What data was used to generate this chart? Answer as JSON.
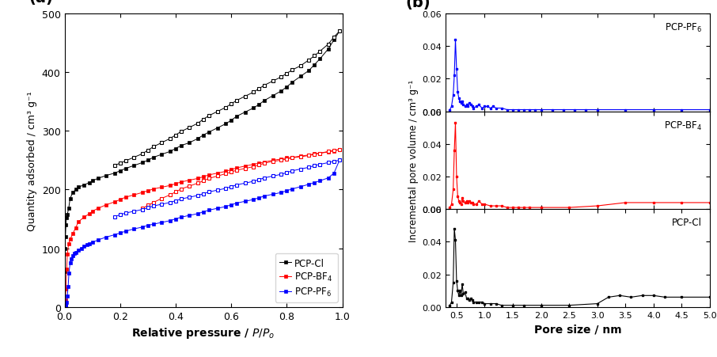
{
  "panel_a": {
    "xlabel": "Relative pressure / $P/P_o$",
    "ylabel": "Quantity adsorbed / cm³ g⁻¹",
    "xlim": [
      0,
      1.0
    ],
    "ylim": [
      0,
      500
    ],
    "yticks": [
      0,
      100,
      200,
      300,
      400,
      500
    ],
    "xticks": [
      0.0,
      0.2,
      0.4,
      0.6,
      0.8,
      1.0
    ],
    "series": {
      "PCP-Cl": {
        "color": "black",
        "adsorption_x": [
          0.001,
          0.002,
          0.003,
          0.005,
          0.007,
          0.01,
          0.015,
          0.02,
          0.03,
          0.04,
          0.05,
          0.07,
          0.09,
          0.1,
          0.12,
          0.15,
          0.18,
          0.2,
          0.22,
          0.25,
          0.28,
          0.3,
          0.32,
          0.35,
          0.38,
          0.4,
          0.42,
          0.45,
          0.48,
          0.5,
          0.52,
          0.55,
          0.58,
          0.6,
          0.62,
          0.65,
          0.68,
          0.7,
          0.72,
          0.75,
          0.78,
          0.8,
          0.82,
          0.85,
          0.88,
          0.9,
          0.92,
          0.95,
          0.97,
          0.99
        ],
        "adsorption_y": [
          60,
          100,
          120,
          140,
          152,
          158,
          168,
          185,
          195,
          200,
          204,
          208,
          212,
          215,
          219,
          224,
          228,
          232,
          236,
          241,
          246,
          250,
          255,
          260,
          265,
          270,
          275,
          280,
          287,
          293,
          298,
          305,
          312,
          318,
          325,
          332,
          339,
          345,
          352,
          360,
          368,
          375,
          383,
          393,
          403,
          413,
          423,
          440,
          455,
          470
        ],
        "desorption_x": [
          0.99,
          0.97,
          0.95,
          0.92,
          0.9,
          0.88,
          0.85,
          0.82,
          0.8,
          0.78,
          0.75,
          0.72,
          0.7,
          0.68,
          0.65,
          0.62,
          0.6,
          0.58,
          0.55,
          0.52,
          0.5,
          0.48,
          0.45,
          0.42,
          0.4,
          0.38,
          0.35,
          0.32,
          0.3,
          0.28,
          0.25,
          0.22,
          0.2,
          0.18
        ],
        "desorption_y": [
          470,
          460,
          448,
          436,
          428,
          421,
          411,
          404,
          398,
          392,
          385,
          378,
          372,
          366,
          359,
          352,
          346,
          340,
          333,
          326,
          320,
          313,
          306,
          299,
          293,
          287,
          280,
          273,
          267,
          261,
          255,
          249,
          245,
          241
        ]
      },
      "PCP-BF4": {
        "color": "red",
        "adsorption_x": [
          0.001,
          0.003,
          0.005,
          0.008,
          0.01,
          0.015,
          0.02,
          0.03,
          0.04,
          0.05,
          0.07,
          0.09,
          0.1,
          0.12,
          0.15,
          0.18,
          0.2,
          0.22,
          0.25,
          0.28,
          0.3,
          0.32,
          0.35,
          0.38,
          0.4,
          0.42,
          0.45,
          0.48,
          0.5,
          0.52,
          0.55,
          0.58,
          0.6,
          0.62,
          0.65,
          0.68,
          0.7,
          0.72,
          0.75,
          0.78,
          0.8,
          0.82,
          0.85,
          0.88,
          0.9,
          0.92,
          0.95,
          0.97,
          0.99
        ],
        "adsorption_y": [
          5,
          12,
          30,
          65,
          90,
          108,
          115,
          125,
          135,
          145,
          153,
          159,
          163,
          168,
          174,
          179,
          183,
          187,
          191,
          195,
          198,
          201,
          204,
          207,
          210,
          213,
          216,
          219,
          222,
          225,
          228,
          231,
          234,
          237,
          240,
          243,
          245,
          247,
          250,
          252,
          254,
          255,
          257,
          259,
          261,
          262,
          264,
          266,
          268
        ],
        "desorption_x": [
          0.99,
          0.97,
          0.95,
          0.92,
          0.9,
          0.88,
          0.85,
          0.82,
          0.8,
          0.78,
          0.75,
          0.72,
          0.7,
          0.68,
          0.65,
          0.62,
          0.6,
          0.58,
          0.55,
          0.52,
          0.5,
          0.48,
          0.45,
          0.42,
          0.4,
          0.38,
          0.35,
          0.32,
          0.3,
          0.28
        ],
        "desorption_y": [
          268,
          267,
          265,
          262,
          260,
          258,
          256,
          254,
          252,
          250,
          248,
          245,
          242,
          239,
          236,
          233,
          230,
          227,
          223,
          219,
          215,
          211,
          206,
          201,
          196,
          191,
          185,
          178,
          173,
          168
        ]
      },
      "PCP-PF6": {
        "color": "blue",
        "adsorption_x": [
          0.001,
          0.002,
          0.003,
          0.005,
          0.007,
          0.01,
          0.013,
          0.016,
          0.02,
          0.025,
          0.03,
          0.035,
          0.04,
          0.05,
          0.06,
          0.07,
          0.08,
          0.09,
          0.1,
          0.12,
          0.15,
          0.18,
          0.2,
          0.22,
          0.25,
          0.28,
          0.3,
          0.32,
          0.35,
          0.38,
          0.4,
          0.42,
          0.45,
          0.48,
          0.5,
          0.52,
          0.55,
          0.58,
          0.6,
          0.62,
          0.65,
          0.68,
          0.7,
          0.72,
          0.75,
          0.78,
          0.8,
          0.82,
          0.85,
          0.88,
          0.9,
          0.92,
          0.95,
          0.97,
          0.99
        ],
        "adsorption_y": [
          0,
          0,
          1,
          3,
          8,
          18,
          35,
          58,
          75,
          82,
          87,
          91,
          93,
          97,
          100,
          103,
          106,
          108,
          110,
          114,
          119,
          123,
          126,
          129,
          133,
          136,
          139,
          141,
          144,
          147,
          150,
          153,
          156,
          159,
          162,
          165,
          168,
          171,
          174,
          177,
          180,
          183,
          186,
          189,
          192,
          195,
          198,
          201,
          205,
          209,
          212,
          215,
          220,
          228,
          250
        ],
        "desorption_x": [
          0.99,
          0.97,
          0.95,
          0.92,
          0.9,
          0.88,
          0.85,
          0.82,
          0.8,
          0.78,
          0.75,
          0.72,
          0.7,
          0.68,
          0.65,
          0.62,
          0.6,
          0.58,
          0.55,
          0.52,
          0.5,
          0.48,
          0.45,
          0.42,
          0.4,
          0.38,
          0.35,
          0.32,
          0.3,
          0.28,
          0.25,
          0.22,
          0.2,
          0.18
        ],
        "desorption_y": [
          250,
          248,
          246,
          243,
          241,
          238,
          235,
          232,
          229,
          226,
          223,
          220,
          217,
          214,
          211,
          208,
          205,
          202,
          199,
          196,
          193,
          190,
          187,
          184,
          181,
          178,
          175,
          172,
          169,
          166,
          163,
          160,
          157,
          154
        ]
      }
    },
    "legend_order": [
      "PCP-Cl",
      "PCP-BF4",
      "PCP-PF6"
    ],
    "legend_labels": [
      "PCP-Cl",
      "PCP-BF$_4$",
      "PCP-PF$_6$"
    ]
  },
  "panel_b": {
    "xlabel": "Pore size / nm",
    "ylabel": "Incremental pore volume / cm³ g⁻¹",
    "xlim": [
      0.3,
      5.0
    ],
    "ylim": [
      0.0,
      0.06
    ],
    "yticks": [
      0.0,
      0.02,
      0.04,
      0.06
    ],
    "xticks": [
      0.5,
      1.0,
      1.5,
      2.0,
      2.5,
      3.0,
      3.5,
      4.0,
      4.5,
      5.0
    ],
    "subplot_order": [
      "PCP-PF6",
      "PCP-BF4",
      "PCP-Cl"
    ],
    "subplots": {
      "PCP-PF6": {
        "color": "blue",
        "label": "PCP-PF$_6$",
        "x": [
          0.38,
          0.41,
          0.44,
          0.46,
          0.48,
          0.5,
          0.52,
          0.54,
          0.56,
          0.58,
          0.6,
          0.62,
          0.65,
          0.68,
          0.7,
          0.72,
          0.75,
          0.78,
          0.8,
          0.85,
          0.9,
          0.95,
          1.0,
          1.05,
          1.1,
          1.15,
          1.2,
          1.3,
          1.4,
          1.5,
          1.6,
          1.7,
          1.8,
          1.9,
          2.0,
          2.2,
          2.4,
          2.6,
          2.8,
          3.0,
          3.5,
          4.0,
          4.5,
          5.0
        ],
        "y": [
          0.001,
          0.003,
          0.01,
          0.022,
          0.044,
          0.026,
          0.012,
          0.008,
          0.006,
          0.005,
          0.006,
          0.004,
          0.003,
          0.004,
          0.003,
          0.005,
          0.004,
          0.003,
          0.002,
          0.003,
          0.004,
          0.002,
          0.003,
          0.003,
          0.002,
          0.003,
          0.002,
          0.002,
          0.001,
          0.001,
          0.001,
          0.001,
          0.001,
          0.001,
          0.001,
          0.001,
          0.001,
          0.001,
          0.001,
          0.001,
          0.001,
          0.001,
          0.001,
          0.001
        ]
      },
      "PCP-BF4": {
        "color": "red",
        "label": "PCP-BF$_4$",
        "x": [
          0.38,
          0.41,
          0.44,
          0.46,
          0.48,
          0.5,
          0.52,
          0.54,
          0.56,
          0.58,
          0.6,
          0.62,
          0.65,
          0.68,
          0.7,
          0.72,
          0.75,
          0.78,
          0.8,
          0.85,
          0.9,
          0.95,
          1.0,
          1.1,
          1.2,
          1.3,
          1.4,
          1.5,
          1.6,
          1.7,
          1.8,
          2.0,
          2.5,
          3.0,
          3.5,
          4.0,
          4.5,
          5.0
        ],
        "y": [
          0.001,
          0.003,
          0.012,
          0.036,
          0.053,
          0.02,
          0.008,
          0.005,
          0.004,
          0.003,
          0.007,
          0.005,
          0.004,
          0.005,
          0.004,
          0.005,
          0.004,
          0.004,
          0.003,
          0.003,
          0.005,
          0.003,
          0.003,
          0.002,
          0.002,
          0.002,
          0.001,
          0.001,
          0.001,
          0.001,
          0.001,
          0.001,
          0.001,
          0.002,
          0.004,
          0.004,
          0.004,
          0.004
        ]
      },
      "PCP-Cl": {
        "color": "black",
        "label": "PCP-Cl",
        "x": [
          0.38,
          0.41,
          0.44,
          0.46,
          0.48,
          0.5,
          0.52,
          0.54,
          0.56,
          0.58,
          0.6,
          0.62,
          0.65,
          0.68,
          0.7,
          0.72,
          0.75,
          0.78,
          0.8,
          0.85,
          0.9,
          0.95,
          1.0,
          1.1,
          1.2,
          1.3,
          1.5,
          1.7,
          2.0,
          2.5,
          3.0,
          3.2,
          3.4,
          3.6,
          3.8,
          4.0,
          4.2,
          4.5,
          5.0
        ],
        "y": [
          0.001,
          0.003,
          0.015,
          0.048,
          0.041,
          0.016,
          0.01,
          0.007,
          0.01,
          0.007,
          0.014,
          0.008,
          0.009,
          0.005,
          0.005,
          0.004,
          0.005,
          0.004,
          0.003,
          0.003,
          0.003,
          0.003,
          0.002,
          0.002,
          0.002,
          0.001,
          0.001,
          0.001,
          0.001,
          0.001,
          0.002,
          0.006,
          0.007,
          0.006,
          0.007,
          0.007,
          0.006,
          0.006,
          0.006
        ]
      }
    }
  }
}
